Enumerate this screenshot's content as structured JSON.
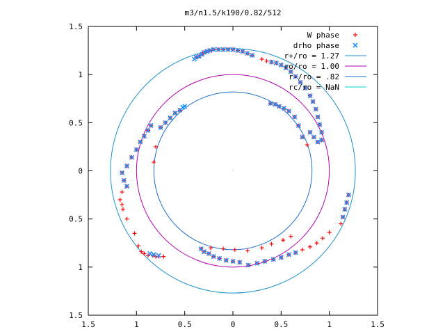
{
  "chart_data": {
    "type": "scatter",
    "title": "m3/n1.5/k190/0.82/512",
    "xlim": [
      -1.5,
      1.5
    ],
    "ylim": [
      -1.5,
      1.5
    ],
    "x_ticks": [
      {
        "value": -1.5,
        "label": "1.5"
      },
      {
        "value": -1.0,
        "label": "1"
      },
      {
        "value": -0.5,
        "label": "0.5"
      },
      {
        "value": 0.0,
        "label": "0"
      },
      {
        "value": 0.5,
        "label": "0.5"
      },
      {
        "value": 1.0,
        "label": "1"
      },
      {
        "value": 1.5,
        "label": "1.5"
      }
    ],
    "y_ticks": [
      {
        "value": 1.5,
        "label": "1.5"
      },
      {
        "value": 1.0,
        "label": "1"
      },
      {
        "value": 0.5,
        "label": "0.5"
      },
      {
        "value": 0.0,
        "label": "0"
      },
      {
        "value": -0.5,
        "label": "0.5"
      },
      {
        "value": -1.0,
        "label": "1"
      },
      {
        "value": -1.5,
        "label": "1.5"
      }
    ],
    "legend_position": "top-right",
    "legend": [
      {
        "label": "W phase",
        "marker": "+",
        "color": "#ff0000"
      },
      {
        "label": "drho phase",
        "marker": "x",
        "color": "#1e90ff"
      },
      {
        "label": "r+/ro = 1.27",
        "marker": "line",
        "color": "#1e90c8"
      },
      {
        "label": "ro/ro = 1.00",
        "marker": "line",
        "color": "#b000b0"
      },
      {
        "label": "r-/ro = .82",
        "marker": "line",
        "color": "#1e6ec8"
      },
      {
        "label": "rc/ro = NaN",
        "marker": "line",
        "color": "#00d2d2"
      }
    ],
    "circles": [
      {
        "name": "r+/ro = 1.27",
        "radius": 1.27,
        "color": "#1e90c8"
      },
      {
        "name": "ro/ro = 1.00",
        "radius": 1.0,
        "color": "#b000b0"
      },
      {
        "name": "r-/ro = .82",
        "radius": 0.82,
        "color": "#1e6ec8"
      }
    ],
    "series": [
      {
        "name": "W phase",
        "marker": "+",
        "color": "#ff0000",
        "points": [
          [
            -0.38,
            1.18
          ],
          [
            -0.35,
            1.19
          ],
          [
            -0.32,
            1.21
          ],
          [
            -0.3,
            1.23
          ],
          [
            -0.27,
            1.24
          ],
          [
            -0.24,
            1.25
          ],
          [
            -0.2,
            1.26
          ],
          [
            -0.15,
            1.26
          ],
          [
            -0.1,
            1.26
          ],
          [
            -0.05,
            1.26
          ],
          [
            0.0,
            1.26
          ],
          [
            0.05,
            1.25
          ],
          [
            0.1,
            1.24
          ],
          [
            0.15,
            1.22
          ],
          [
            0.2,
            1.2
          ],
          [
            0.3,
            1.16
          ],
          [
            0.35,
            1.14
          ],
          [
            0.4,
            1.13
          ],
          [
            0.45,
            1.12
          ],
          [
            0.5,
            1.1
          ],
          [
            0.55,
            1.07
          ],
          [
            0.6,
            1.03
          ],
          [
            0.65,
            0.98
          ],
          [
            0.7,
            0.92
          ],
          [
            0.75,
            0.86
          ],
          [
            0.8,
            0.78
          ],
          [
            0.83,
            0.72
          ],
          [
            0.86,
            0.64
          ],
          [
            0.88,
            0.56
          ],
          [
            0.9,
            0.48
          ],
          [
            0.92,
            0.4
          ],
          [
            0.92,
            0.32
          ],
          [
            0.88,
            0.3
          ],
          [
            0.84,
            0.35
          ],
          [
            0.8,
            0.4
          ],
          [
            0.39,
            0.7
          ],
          [
            0.44,
            0.69
          ],
          [
            0.48,
            0.67
          ],
          [
            0.53,
            0.65
          ],
          [
            0.58,
            0.62
          ],
          [
            0.64,
            0.56
          ],
          [
            0.68,
            0.47
          ],
          [
            0.72,
            0.35
          ],
          [
            0.77,
            0.27
          ],
          [
            1.2,
            -0.25
          ],
          [
            1.18,
            -0.33
          ],
          [
            1.16,
            -0.4
          ],
          [
            1.14,
            -0.48
          ],
          [
            1.12,
            -0.55
          ],
          [
            1.0,
            -0.64
          ],
          [
            0.93,
            -0.7
          ],
          [
            0.87,
            -0.75
          ],
          [
            0.8,
            -0.79
          ],
          [
            0.72,
            -0.82
          ],
          [
            0.65,
            -0.85
          ],
          [
            0.58,
            -0.87
          ],
          [
            0.5,
            -0.9
          ],
          [
            0.42,
            -0.92
          ],
          [
            0.33,
            -0.94
          ],
          [
            0.25,
            -0.96
          ],
          [
            0.16,
            -0.98
          ],
          [
            0.07,
            -0.95
          ],
          [
            0.0,
            -0.94
          ],
          [
            -0.07,
            -0.93
          ],
          [
            -0.14,
            -0.91
          ],
          [
            -0.2,
            -0.89
          ],
          [
            -0.25,
            -0.86
          ],
          [
            -0.3,
            -0.84
          ],
          [
            -0.33,
            -0.81
          ],
          [
            -0.23,
            -0.8
          ],
          [
            -0.1,
            -0.81
          ],
          [
            0.02,
            -0.82
          ],
          [
            0.15,
            -0.83
          ],
          [
            0.3,
            -0.8
          ],
          [
            0.4,
            -0.76
          ],
          [
            0.52,
            -0.72
          ],
          [
            0.6,
            -0.68
          ],
          [
            -0.85,
            0.47
          ],
          [
            -0.88,
            0.42
          ],
          [
            -0.92,
            0.36
          ],
          [
            -0.96,
            0.3
          ],
          [
            -1.0,
            0.22
          ],
          [
            -1.05,
            0.14
          ],
          [
            -1.1,
            0.05
          ],
          [
            -1.15,
            -0.02
          ],
          [
            -1.13,
            -0.1
          ],
          [
            -1.1,
            -0.16
          ],
          [
            -1.15,
            -0.22
          ],
          [
            -1.17,
            -0.3
          ],
          [
            -1.15,
            -0.35
          ],
          [
            -1.14,
            -0.4
          ],
          [
            -1.1,
            -0.5
          ],
          [
            -1.02,
            -0.65
          ],
          [
            -0.98,
            -0.78
          ],
          [
            -0.95,
            -0.84
          ],
          [
            -0.92,
            -0.86
          ],
          [
            -0.88,
            -0.88
          ],
          [
            -0.83,
            -0.88
          ],
          [
            -0.8,
            -0.89
          ],
          [
            -0.77,
            -0.89
          ],
          [
            -0.72,
            -0.89
          ],
          [
            -0.8,
            0.25
          ],
          [
            -0.82,
            0.09
          ],
          [
            -0.55,
            0.63
          ],
          [
            -0.6,
            0.6
          ],
          [
            -0.65,
            0.55
          ],
          [
            -0.7,
            0.5
          ],
          [
            -0.75,
            0.45
          ]
        ]
      },
      {
        "name": "drho phase",
        "marker": "x",
        "color": "#1e90ff",
        "points": [
          [
            -0.4,
            1.16
          ],
          [
            -0.38,
            1.18
          ],
          [
            -0.35,
            1.19
          ],
          [
            -0.32,
            1.21
          ],
          [
            -0.3,
            1.23
          ],
          [
            -0.27,
            1.24
          ],
          [
            -0.24,
            1.25
          ],
          [
            -0.2,
            1.26
          ],
          [
            -0.15,
            1.26
          ],
          [
            -0.1,
            1.26
          ],
          [
            -0.05,
            1.26
          ],
          [
            0.0,
            1.26
          ],
          [
            0.05,
            1.25
          ],
          [
            0.1,
            1.24
          ],
          [
            0.15,
            1.22
          ],
          [
            0.2,
            1.2
          ],
          [
            0.4,
            1.13
          ],
          [
            0.45,
            1.12
          ],
          [
            0.5,
            1.1
          ],
          [
            0.55,
            1.07
          ],
          [
            0.6,
            1.03
          ],
          [
            0.65,
            0.98
          ],
          [
            0.7,
            0.92
          ],
          [
            0.75,
            0.86
          ],
          [
            0.8,
            0.78
          ],
          [
            0.83,
            0.72
          ],
          [
            0.86,
            0.64
          ],
          [
            0.88,
            0.56
          ],
          [
            0.9,
            0.48
          ],
          [
            0.92,
            0.4
          ],
          [
            0.92,
            0.32
          ],
          [
            0.88,
            0.3
          ],
          [
            0.84,
            0.35
          ],
          [
            0.8,
            0.4
          ],
          [
            0.39,
            0.7
          ],
          [
            0.44,
            0.69
          ],
          [
            0.48,
            0.67
          ],
          [
            0.53,
            0.65
          ],
          [
            0.58,
            0.62
          ],
          [
            0.64,
            0.56
          ],
          [
            0.68,
            0.47
          ],
          [
            0.72,
            0.35
          ],
          [
            1.2,
            -0.25
          ],
          [
            1.18,
            -0.33
          ],
          [
            1.16,
            -0.4
          ],
          [
            1.14,
            -0.48
          ],
          [
            0.65,
            -0.85
          ],
          [
            0.58,
            -0.87
          ],
          [
            0.5,
            -0.9
          ],
          [
            0.42,
            -0.92
          ],
          [
            0.33,
            -0.94
          ],
          [
            0.25,
            -0.96
          ],
          [
            0.16,
            -0.98
          ],
          [
            0.07,
            -0.95
          ],
          [
            0.0,
            -0.94
          ],
          [
            -0.07,
            -0.93
          ],
          [
            -0.14,
            -0.91
          ],
          [
            -0.2,
            -0.89
          ],
          [
            -0.25,
            -0.86
          ],
          [
            -0.3,
            -0.84
          ],
          [
            -0.33,
            -0.81
          ],
          [
            -0.85,
            0.47
          ],
          [
            -0.88,
            0.42
          ],
          [
            -0.92,
            0.36
          ],
          [
            -0.96,
            0.3
          ],
          [
            -1.0,
            0.22
          ],
          [
            -1.05,
            0.14
          ],
          [
            -1.1,
            0.05
          ],
          [
            -1.15,
            -0.02
          ],
          [
            -1.13,
            -0.1
          ],
          [
            -1.1,
            -0.16
          ],
          [
            -0.55,
            0.63
          ],
          [
            -0.6,
            0.6
          ],
          [
            -0.65,
            0.55
          ],
          [
            -0.7,
            0.5
          ],
          [
            -0.75,
            0.45
          ],
          [
            -0.5,
            0.67
          ],
          [
            -0.52,
            0.66
          ],
          [
            -0.86,
            -0.86
          ],
          [
            -0.82,
            -0.87
          ],
          [
            -0.77,
            -0.88
          ]
        ]
      }
    ]
  }
}
